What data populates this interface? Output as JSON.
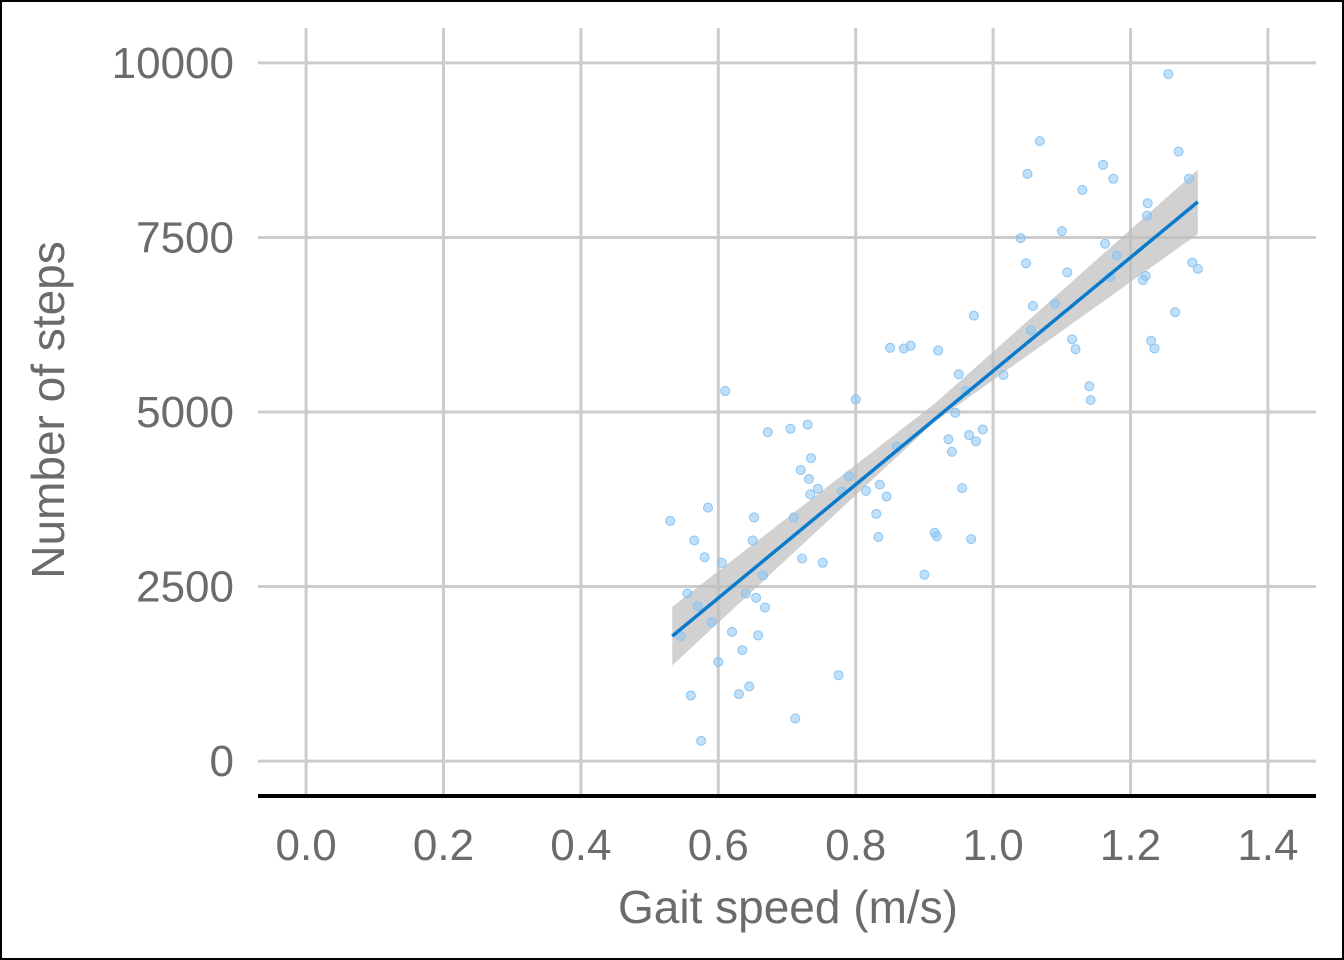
{
  "chart_data": {
    "type": "scatter",
    "title": "",
    "xlabel": "Gait speed (m/s)",
    "ylabel": "Number of steps",
    "xlim": [
      -0.07,
      1.47
    ],
    "ylim": [
      -500,
      10500
    ],
    "x_ticks": [
      "0.0",
      "0.2",
      "0.4",
      "0.6",
      "0.8",
      "1.0",
      "1.2",
      "1.4"
    ],
    "x_tick_values": [
      0.0,
      0.2,
      0.4,
      0.6,
      0.8,
      1.0,
      1.2,
      1.4
    ],
    "y_ticks": [
      "0",
      "2500",
      "5000",
      "7500",
      "10000"
    ],
    "y_tick_values": [
      0,
      2500,
      5000,
      7500,
      10000
    ],
    "grid": true,
    "colors": {
      "points": "#8cc4f2",
      "line": "#0a7acc",
      "band": "#bebebe",
      "grid": "#cccccc",
      "axis": "#000000",
      "text": "#6b6b6b"
    },
    "series": [
      {
        "type": "scatter",
        "points": [
          [
            0.53,
            3440
          ],
          [
            0.545,
            1790
          ],
          [
            0.555,
            2400
          ],
          [
            0.56,
            940
          ],
          [
            0.565,
            3160
          ],
          [
            0.57,
            2220
          ],
          [
            0.575,
            290
          ],
          [
            0.58,
            2920
          ],
          [
            0.585,
            3630
          ],
          [
            0.59,
            1990
          ],
          [
            0.6,
            1420
          ],
          [
            0.605,
            2840
          ],
          [
            0.61,
            5300
          ],
          [
            0.62,
            1850
          ],
          [
            0.63,
            960
          ],
          [
            0.635,
            1590
          ],
          [
            0.64,
            2400
          ],
          [
            0.645,
            1070
          ],
          [
            0.65,
            3160
          ],
          [
            0.652,
            3490
          ],
          [
            0.655,
            2340
          ],
          [
            0.658,
            1800
          ],
          [
            0.665,
            2660
          ],
          [
            0.668,
            2200
          ],
          [
            0.672,
            4710
          ],
          [
            0.705,
            4760
          ],
          [
            0.71,
            3490
          ],
          [
            0.712,
            610
          ],
          [
            0.72,
            4170
          ],
          [
            0.722,
            2900
          ],
          [
            0.73,
            4820
          ],
          [
            0.732,
            4040
          ],
          [
            0.734,
            3820
          ],
          [
            0.735,
            4340
          ],
          [
            0.745,
            3900
          ],
          [
            0.752,
            2840
          ],
          [
            0.775,
            1230
          ],
          [
            0.78,
            3860
          ],
          [
            0.79,
            4080
          ],
          [
            0.8,
            5180
          ],
          [
            0.815,
            3870
          ],
          [
            0.83,
            3540
          ],
          [
            0.833,
            3210
          ],
          [
            0.835,
            3960
          ],
          [
            0.845,
            3790
          ],
          [
            0.85,
            5920
          ],
          [
            0.86,
            4500
          ],
          [
            0.87,
            5910
          ],
          [
            0.88,
            5950
          ],
          [
            0.9,
            2670
          ],
          [
            0.915,
            3270
          ],
          [
            0.918,
            3220
          ],
          [
            0.92,
            5880
          ],
          [
            0.935,
            4610
          ],
          [
            0.94,
            4430
          ],
          [
            0.945,
            4990
          ],
          [
            0.95,
            5540
          ],
          [
            0.955,
            3910
          ],
          [
            0.96,
            5300
          ],
          [
            0.965,
            4670
          ],
          [
            0.968,
            3180
          ],
          [
            0.972,
            6380
          ],
          [
            0.975,
            4580
          ],
          [
            0.985,
            4750
          ],
          [
            1.015,
            5530
          ],
          [
            1.04,
            7490
          ],
          [
            1.048,
            7130
          ],
          [
            1.05,
            8410
          ],
          [
            1.055,
            6170
          ],
          [
            1.058,
            6520
          ],
          [
            1.068,
            8880
          ],
          [
            1.09,
            6550
          ],
          [
            1.1,
            7590
          ],
          [
            1.108,
            7000
          ],
          [
            1.115,
            6040
          ],
          [
            1.12,
            5900
          ],
          [
            1.13,
            8180
          ],
          [
            1.14,
            5370
          ],
          [
            1.142,
            5170
          ],
          [
            1.16,
            8540
          ],
          [
            1.163,
            7410
          ],
          [
            1.17,
            6930
          ],
          [
            1.175,
            8340
          ],
          [
            1.18,
            7240
          ],
          [
            1.218,
            6890
          ],
          [
            1.222,
            6950
          ],
          [
            1.224,
            7810
          ],
          [
            1.225,
            7990
          ],
          [
            1.23,
            6020
          ],
          [
            1.235,
            5910
          ],
          [
            1.255,
            9840
          ],
          [
            1.265,
            6430
          ],
          [
            1.27,
            8730
          ],
          [
            1.285,
            8340
          ],
          [
            1.29,
            7140
          ],
          [
            1.298,
            7050
          ]
        ]
      },
      {
        "type": "line",
        "x": [
          0.533,
          1.298
        ],
        "y": [
          1790,
          8010
        ]
      },
      {
        "type": "area",
        "x": [
          0.533,
          0.915,
          1.298
        ],
        "upper": [
          2210,
          5120,
          8470
        ],
        "lower": [
          1370,
          4860,
          7550
        ]
      }
    ]
  }
}
